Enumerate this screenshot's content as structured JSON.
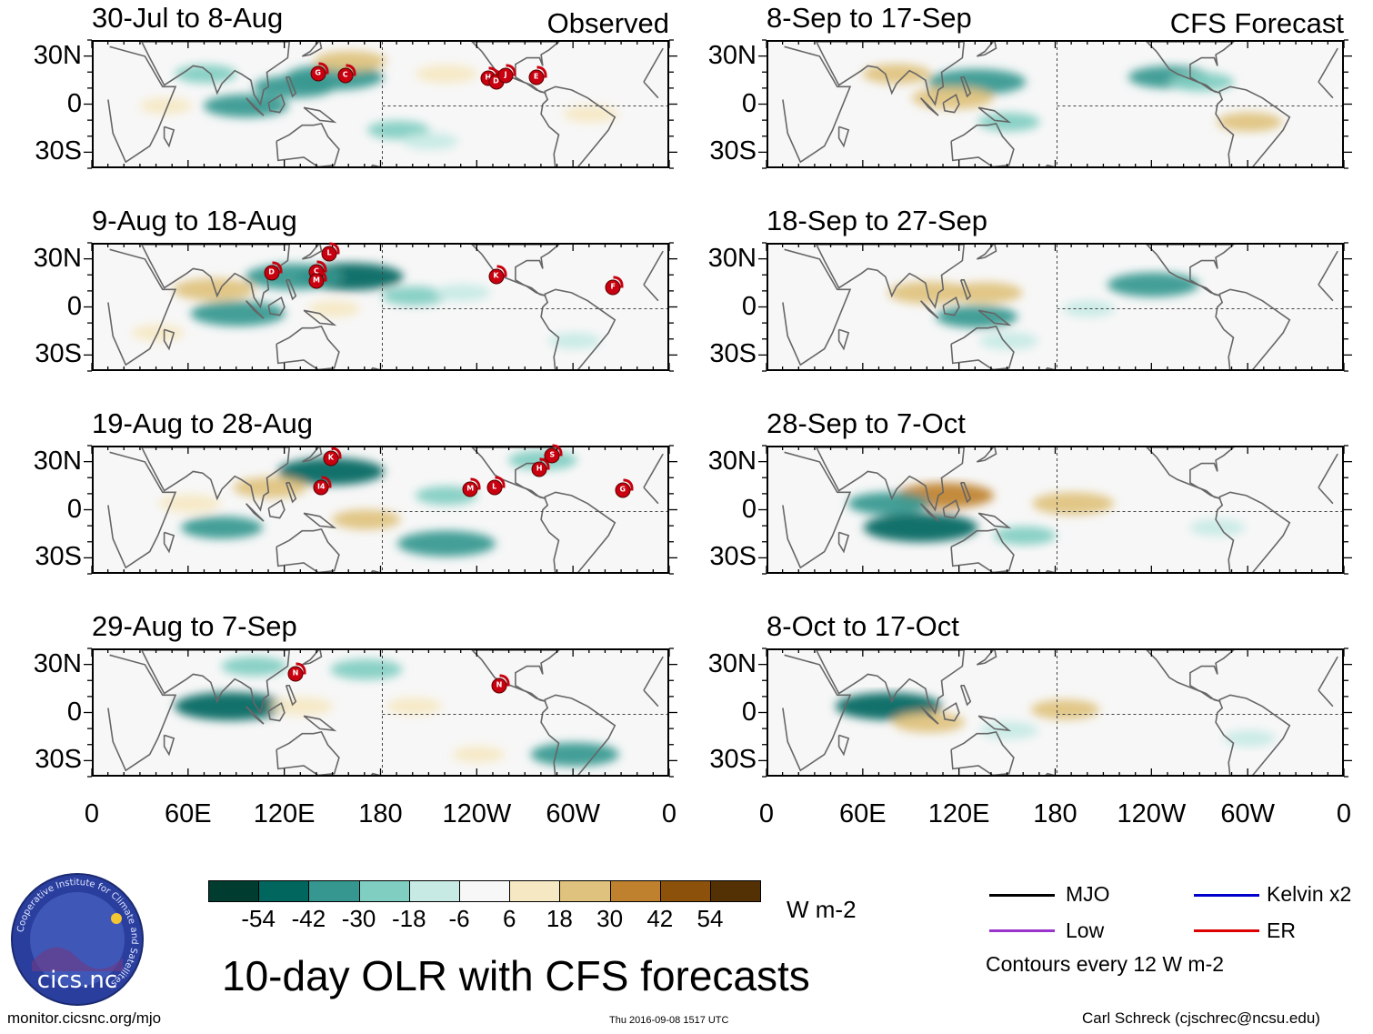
{
  "panels": [
    {
      "title": "30-Jul to 8-Aug",
      "corner": "Observed",
      "storms": [
        {
          "letter": "G",
          "lon": 141,
          "lat": 19
        },
        {
          "letter": "C",
          "lon": 158,
          "lat": 18
        },
        {
          "letter": "H",
          "lon": -113,
          "lat": 16
        },
        {
          "letter": "D",
          "lon": -108,
          "lat": 14
        },
        {
          "letter": "J",
          "lon": -102,
          "lat": 18
        },
        {
          "letter": "E",
          "lon": -83,
          "lat": 17
        }
      ]
    },
    {
      "title": "9-Aug to 18-Aug",
      "corner": "",
      "storms": [
        {
          "letter": "D",
          "lon": 112,
          "lat": 21
        },
        {
          "letter": "C",
          "lon": 140,
          "lat": 22
        },
        {
          "letter": "M",
          "lon": 140,
          "lat": 16
        },
        {
          "letter": "L",
          "lon": 148,
          "lat": 33
        },
        {
          "letter": "K",
          "lon": -108,
          "lat": 19
        },
        {
          "letter": "F",
          "lon": -35,
          "lat": 12
        }
      ]
    },
    {
      "title": "19-Aug to 28-Aug",
      "corner": "",
      "storms": [
        {
          "letter": "K",
          "lon": 149,
          "lat": 32
        },
        {
          "letter": "I4",
          "lon": 143,
          "lat": 14
        },
        {
          "letter": "M",
          "lon": -124,
          "lat": 13
        },
        {
          "letter": "L",
          "lon": -109,
          "lat": 14
        },
        {
          "letter": "H",
          "lon": -81,
          "lat": 25
        },
        {
          "letter": "S",
          "lon": -73,
          "lat": 34
        },
        {
          "letter": "G",
          "lon": -29,
          "lat": 12
        }
      ]
    },
    {
      "title": "29-Aug to 7-Sep",
      "corner": "",
      "storms": [
        {
          "letter": "N",
          "lon": 127,
          "lat": 24
        },
        {
          "letter": "N",
          "lon": -106,
          "lat": 17
        }
      ]
    },
    {
      "title": "8-Sep to 17-Sep",
      "corner": "CFS Forecast",
      "storms": []
    },
    {
      "title": "18-Sep to 27-Sep",
      "corner": "",
      "storms": []
    },
    {
      "title": "28-Sep to 7-Oct",
      "corner": "",
      "storms": []
    },
    {
      "title": "8-Oct to 17-Oct",
      "corner": "",
      "storms": []
    }
  ],
  "axes": {
    "lat_labels": [
      "30N",
      "0",
      "30S"
    ],
    "lon_labels": [
      "0",
      "60E",
      "120E",
      "180",
      "120W",
      "60W",
      "0"
    ]
  },
  "colorbar": {
    "colors": [
      "#003c30",
      "#01665e",
      "#35978f",
      "#80cdc1",
      "#c7eae5",
      "#f7f7f7",
      "#f6e8c3",
      "#dfc27d",
      "#bf812d",
      "#8c510a",
      "#543005"
    ],
    "labels": [
      "-54",
      "-42",
      "-30",
      "-18",
      "-6",
      "6",
      "18",
      "30",
      "42",
      "54"
    ],
    "units": "W m-2"
  },
  "legend": {
    "items": [
      {
        "label": "MJO",
        "color": "#000000"
      },
      {
        "label": "Kelvin x2",
        "color": "#0000cc"
      },
      {
        "label": "Low",
        "color": "#9933cc"
      },
      {
        "label": "ER",
        "color": "#dd0000"
      }
    ],
    "contour_note": "Contours every 12 W m-2"
  },
  "title": "10-day OLR with CFS forecasts",
  "footer": {
    "left": "monitor.cicsnc.org/mjo",
    "timestamp": "Thu 2016-09-08 1517 UTC",
    "right": "Carl Schreck (cjschrec@ncsu.edu)"
  },
  "logo": {
    "text": "cics.nc",
    "ring_text": "Cooperative Institute for Climate and Satellites"
  },
  "anomalies": [
    [
      {
        "lon": 150,
        "lat": 18,
        "v": -40
      },
      {
        "lon": 125,
        "lat": 12,
        "v": -30
      },
      {
        "lon": 95,
        "lat": 0,
        "v": -32
      },
      {
        "lon": 160,
        "lat": 28,
        "v": 24
      },
      {
        "lon": -140,
        "lat": 20,
        "v": 18
      },
      {
        "lon": -170,
        "lat": -15,
        "v": -18
      },
      {
        "lon": -150,
        "lat": -22,
        "v": -14
      },
      {
        "lon": 45,
        "lat": 0,
        "v": 12
      },
      {
        "lon": 70,
        "lat": 20,
        "v": -18
      },
      {
        "lon": -50,
        "lat": -5,
        "v": 14
      }
    ],
    [
      {
        "lon": 160,
        "lat": 20,
        "v": -45
      },
      {
        "lon": 125,
        "lat": 20,
        "v": -40
      },
      {
        "lon": 90,
        "lat": -3,
        "v": -38
      },
      {
        "lon": 75,
        "lat": 12,
        "v": 30
      },
      {
        "lon": 150,
        "lat": 0,
        "v": 12
      },
      {
        "lon": -160,
        "lat": 8,
        "v": -20
      },
      {
        "lon": -130,
        "lat": 10,
        "v": -14
      },
      {
        "lon": -60,
        "lat": -20,
        "v": -12
      },
      {
        "lon": 40,
        "lat": -15,
        "v": 12
      }
    ],
    [
      {
        "lon": 148,
        "lat": 25,
        "v": -45
      },
      {
        "lon": 170,
        "lat": -5,
        "v": 22
      },
      {
        "lon": -140,
        "lat": -20,
        "v": -40
      },
      {
        "lon": 80,
        "lat": -10,
        "v": -30
      },
      {
        "lon": 110,
        "lat": 15,
        "v": 25
      },
      {
        "lon": -140,
        "lat": 10,
        "v": -18
      },
      {
        "lon": -80,
        "lat": 32,
        "v": -22
      },
      {
        "lon": 60,
        "lat": 5,
        "v": 18
      }
    ],
    [
      {
        "lon": 85,
        "lat": 5,
        "v": -48
      },
      {
        "lon": -60,
        "lat": -25,
        "v": -34
      },
      {
        "lon": 170,
        "lat": 28,
        "v": -24
      },
      {
        "lon": -160,
        "lat": 5,
        "v": 14
      },
      {
        "lon": 130,
        "lat": 5,
        "v": 18
      },
      {
        "lon": 100,
        "lat": 30,
        "v": -20
      },
      {
        "lon": -120,
        "lat": -25,
        "v": 12
      }
    ],
    [
      {
        "lon": 130,
        "lat": 15,
        "v": -40
      },
      {
        "lon": 115,
        "lat": 5,
        "v": 30
      },
      {
        "lon": -110,
        "lat": 18,
        "v": -30
      },
      {
        "lon": 80,
        "lat": 20,
        "v": 22
      },
      {
        "lon": 150,
        "lat": -10,
        "v": -18
      },
      {
        "lon": -60,
        "lat": -10,
        "v": 20
      },
      {
        "lon": -90,
        "lat": 15,
        "v": -20
      }
    ],
    [
      {
        "lon": 100,
        "lat": 10,
        "v": 30
      },
      {
        "lon": -120,
        "lat": 15,
        "v": -36
      },
      {
        "lon": 130,
        "lat": -5,
        "v": -30
      },
      {
        "lon": 135,
        "lat": 10,
        "v": 26
      },
      {
        "lon": 150,
        "lat": -20,
        "v": -16
      },
      {
        "lon": -160,
        "lat": 0,
        "v": -12
      }
    ],
    [
      {
        "lon": 95,
        "lat": -10,
        "v": -50
      },
      {
        "lon": 110,
        "lat": 10,
        "v": 40
      },
      {
        "lon": 75,
        "lat": 5,
        "v": -30
      },
      {
        "lon": -170,
        "lat": 5,
        "v": 30
      },
      {
        "lon": 160,
        "lat": -15,
        "v": -18
      },
      {
        "lon": -80,
        "lat": -10,
        "v": -14
      }
    ],
    [
      {
        "lon": 75,
        "lat": 5,
        "v": -45
      },
      {
        "lon": -175,
        "lat": 3,
        "v": 22
      },
      {
        "lon": 100,
        "lat": -5,
        "v": 24
      },
      {
        "lon": 150,
        "lat": -10,
        "v": -16
      },
      {
        "lon": -60,
        "lat": -15,
        "v": -12
      }
    ]
  ]
}
